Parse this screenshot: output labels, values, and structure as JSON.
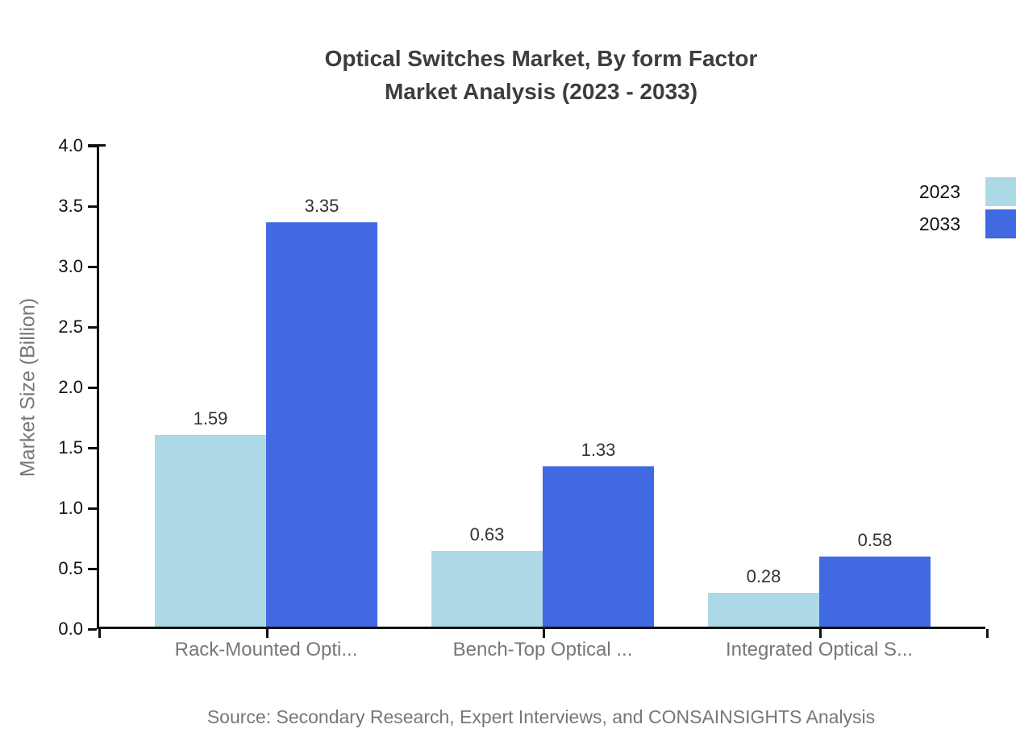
{
  "title": {
    "line1": "Optical Switches Market, By form Factor",
    "line2": "Market Analysis (2023 - 2033)"
  },
  "source": "Source: Secondary Research, Expert Interviews, and CONSAINSIGHTS Analysis",
  "colors": {
    "series_2023": "#ADD8E6",
    "series_2033": "#4169E1",
    "axis": "#111111",
    "title_text": "#3d3d3d",
    "muted_text": "#777777",
    "value_label_text": "#333333"
  },
  "chart_data": {
    "type": "bar",
    "categories": [
      "Rack-Mounted Opti...",
      "Bench-Top Optical ...",
      "Integrated Optical S..."
    ],
    "series": [
      {
        "name": "2023",
        "color": "#ADD8E6",
        "values": [
          1.59,
          0.63,
          0.28
        ]
      },
      {
        "name": "2033",
        "color": "#4169E1",
        "values": [
          3.35,
          1.33,
          0.58
        ]
      }
    ],
    "title": "Optical Switches Market, By form Factor Market Analysis (2023 - 2033)",
    "xlabel": "",
    "ylabel": "Market Size (Billion)",
    "ylim": [
      0.0,
      4.0
    ],
    "yticks": [
      0.0,
      0.5,
      1.0,
      1.5,
      2.0,
      2.5,
      3.0,
      3.5,
      4.0
    ],
    "ytick_labels": [
      "0.0",
      "0.5",
      "1.0",
      "1.5",
      "2.0",
      "2.5",
      "3.0",
      "3.5",
      "4.0"
    ],
    "value_labels": [
      "1.59",
      "3.35",
      "0.63",
      "1.33",
      "0.28",
      "0.58"
    ],
    "grid": false,
    "legend_position": "top-right",
    "legend_entries": [
      "2023",
      "2033"
    ]
  }
}
